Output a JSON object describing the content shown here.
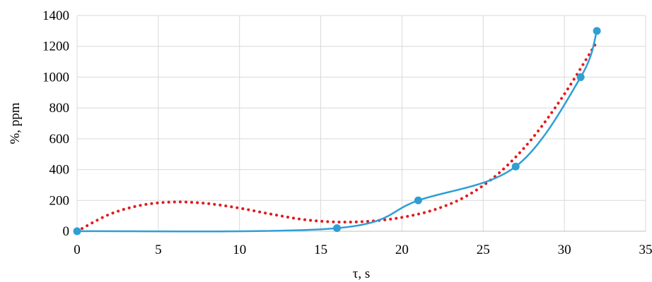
{
  "chart_data": {
    "type": "line",
    "title": "",
    "xlabel": "τ, s",
    "ylabel": "%, ppm",
    "xlim": [
      0,
      35
    ],
    "ylim": [
      0,
      1400
    ],
    "xticks": [
      0,
      5,
      10,
      15,
      20,
      25,
      30,
      35
    ],
    "yticks": [
      0,
      200,
      400,
      600,
      800,
      1000,
      1200,
      1400
    ],
    "grid": true,
    "legend": "none",
    "series": [
      {
        "style": "smooth-line-with-markers",
        "color": "#2e9fd4",
        "x": [
          0,
          16,
          21,
          27,
          31,
          32
        ],
        "y": [
          0,
          20,
          200,
          420,
          1000,
          1300
        ]
      },
      {
        "style": "dotted-trendline",
        "color": "#e31a1c",
        "x": [
          0,
          2,
          4,
          6,
          8,
          10,
          12,
          14,
          16,
          18,
          20,
          22,
          24,
          26,
          28,
          30,
          32
        ],
        "y": [
          0,
          110,
          170,
          190,
          180,
          150,
          110,
          75,
          60,
          65,
          90,
          140,
          230,
          380,
          600,
          890,
          1230
        ]
      }
    ]
  }
}
